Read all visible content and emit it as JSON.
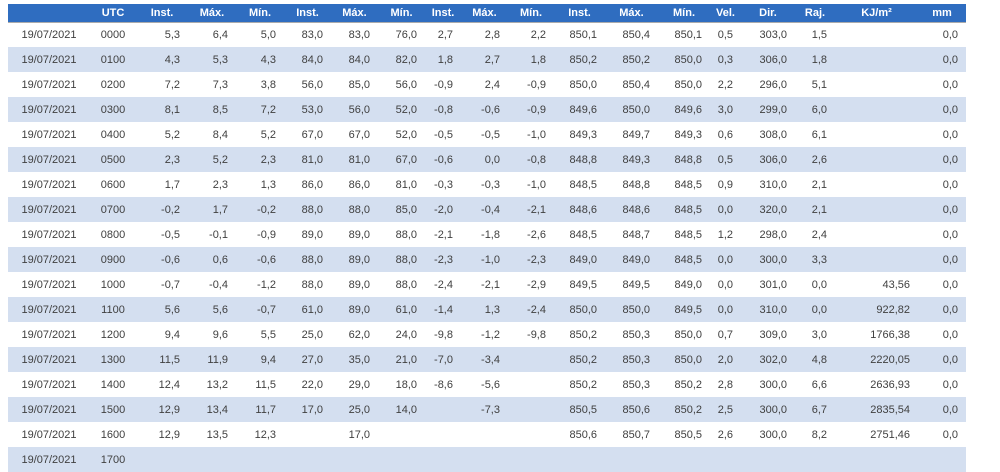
{
  "colors": {
    "header_bg": "#2F6DC0",
    "header_text": "#FFFFFF",
    "row_stripe": "#D4DFF0",
    "row_bg": "#FFFFFF",
    "cell_text": "#404040"
  },
  "chart_data": {
    "type": "table",
    "title": "",
    "columns": [
      "",
      "UTC",
      "Inst.",
      "Máx.",
      "Mín.",
      "Inst.",
      "Máx.",
      "Mín.",
      "Inst.",
      "Máx.",
      "Mín.",
      "Inst.",
      "Máx.",
      "Mín.",
      "Vel.",
      "Dir.",
      "Raj.",
      "KJ/m²",
      "mm"
    ],
    "rows": [
      [
        "19/07/2021",
        "0000",
        "5,3",
        "6,4",
        "5,0",
        "83,0",
        "83,0",
        "76,0",
        "2,7",
        "2,8",
        "2,2",
        "850,1",
        "850,4",
        "850,1",
        "0,5",
        "303,0",
        "1,5",
        "",
        "0,0"
      ],
      [
        "19/07/2021",
        "0100",
        "4,3",
        "5,3",
        "4,3",
        "84,0",
        "84,0",
        "82,0",
        "1,8",
        "2,7",
        "1,8",
        "850,2",
        "850,2",
        "850,0",
        "0,3",
        "306,0",
        "1,8",
        "",
        "0,0"
      ],
      [
        "19/07/2021",
        "0200",
        "7,2",
        "7,3",
        "3,8",
        "56,0",
        "85,0",
        "56,0",
        "-0,9",
        "2,4",
        "-0,9",
        "850,0",
        "850,4",
        "850,0",
        "2,2",
        "296,0",
        "5,1",
        "",
        "0,0"
      ],
      [
        "19/07/2021",
        "0300",
        "8,1",
        "8,5",
        "7,2",
        "53,0",
        "56,0",
        "52,0",
        "-0,8",
        "-0,6",
        "-0,9",
        "849,6",
        "850,0",
        "849,6",
        "3,0",
        "299,0",
        "6,0",
        "",
        "0,0"
      ],
      [
        "19/07/2021",
        "0400",
        "5,2",
        "8,4",
        "5,2",
        "67,0",
        "67,0",
        "52,0",
        "-0,5",
        "-0,5",
        "-1,0",
        "849,3",
        "849,7",
        "849,3",
        "0,6",
        "308,0",
        "6,1",
        "",
        "0,0"
      ],
      [
        "19/07/2021",
        "0500",
        "2,3",
        "5,2",
        "2,3",
        "81,0",
        "81,0",
        "67,0",
        "-0,6",
        "0,0",
        "-0,8",
        "848,8",
        "849,3",
        "848,8",
        "0,5",
        "306,0",
        "2,6",
        "",
        "0,0"
      ],
      [
        "19/07/2021",
        "0600",
        "1,7",
        "2,3",
        "1,3",
        "86,0",
        "86,0",
        "81,0",
        "-0,3",
        "-0,3",
        "-1,0",
        "848,5",
        "848,8",
        "848,5",
        "0,9",
        "310,0",
        "2,1",
        "",
        "0,0"
      ],
      [
        "19/07/2021",
        "0700",
        "-0,2",
        "1,7",
        "-0,2",
        "88,0",
        "88,0",
        "85,0",
        "-2,0",
        "-0,4",
        "-2,1",
        "848,6",
        "848,6",
        "848,5",
        "0,0",
        "320,0",
        "2,1",
        "",
        "0,0"
      ],
      [
        "19/07/2021",
        "0800",
        "-0,5",
        "-0,1",
        "-0,9",
        "89,0",
        "89,0",
        "88,0",
        "-2,1",
        "-1,8",
        "-2,6",
        "848,5",
        "848,7",
        "848,5",
        "1,2",
        "298,0",
        "2,4",
        "",
        "0,0"
      ],
      [
        "19/07/2021",
        "0900",
        "-0,6",
        "0,6",
        "-0,6",
        "88,0",
        "89,0",
        "88,0",
        "-2,3",
        "-1,0",
        "-2,3",
        "849,0",
        "849,0",
        "848,5",
        "0,0",
        "300,0",
        "3,3",
        "",
        "0,0"
      ],
      [
        "19/07/2021",
        "1000",
        "-0,7",
        "-0,4",
        "-1,2",
        "88,0",
        "89,0",
        "88,0",
        "-2,4",
        "-2,1",
        "-2,9",
        "849,5",
        "849,5",
        "849,0",
        "0,0",
        "301,0",
        "0,0",
        "43,56",
        "0,0"
      ],
      [
        "19/07/2021",
        "1100",
        "5,6",
        "5,6",
        "-0,7",
        "61,0",
        "89,0",
        "61,0",
        "-1,4",
        "1,3",
        "-2,4",
        "850,0",
        "850,0",
        "849,5",
        "0,0",
        "310,0",
        "0,0",
        "922,82",
        "0,0"
      ],
      [
        "19/07/2021",
        "1200",
        "9,4",
        "9,6",
        "5,5",
        "25,0",
        "62,0",
        "24,0",
        "-9,8",
        "-1,2",
        "-9,8",
        "850,2",
        "850,3",
        "850,0",
        "0,7",
        "309,0",
        "3,0",
        "1766,38",
        "0,0"
      ],
      [
        "19/07/2021",
        "1300",
        "11,5",
        "11,9",
        "9,4",
        "27,0",
        "35,0",
        "21,0",
        "-7,0",
        "-3,4",
        "",
        "850,2",
        "850,3",
        "850,0",
        "2,0",
        "302,0",
        "4,8",
        "2220,05",
        "0,0"
      ],
      [
        "19/07/2021",
        "1400",
        "12,4",
        "13,2",
        "11,5",
        "22,0",
        "29,0",
        "18,0",
        "-8,6",
        "-5,6",
        "",
        "850,2",
        "850,3",
        "850,2",
        "2,8",
        "300,0",
        "6,6",
        "2636,93",
        "0,0"
      ],
      [
        "19/07/2021",
        "1500",
        "12,9",
        "13,4",
        "11,7",
        "17,0",
        "25,0",
        "14,0",
        "",
        "-7,3",
        "",
        "850,5",
        "850,6",
        "850,2",
        "2,5",
        "300,0",
        "6,7",
        "2835,54",
        "0,0"
      ],
      [
        "19/07/2021",
        "1600",
        "12,9",
        "13,5",
        "12,3",
        "",
        "17,0",
        "",
        "",
        "",
        "",
        "850,6",
        "850,7",
        "850,5",
        "2,6",
        "300,0",
        "8,2",
        "2751,46",
        "0,0"
      ],
      [
        "19/07/2021",
        "1700",
        "",
        "",
        "",
        "",
        "",
        "",
        "",
        "",
        "",
        "",
        "",
        "",
        "",
        "",
        "",
        "",
        ""
      ]
    ]
  }
}
